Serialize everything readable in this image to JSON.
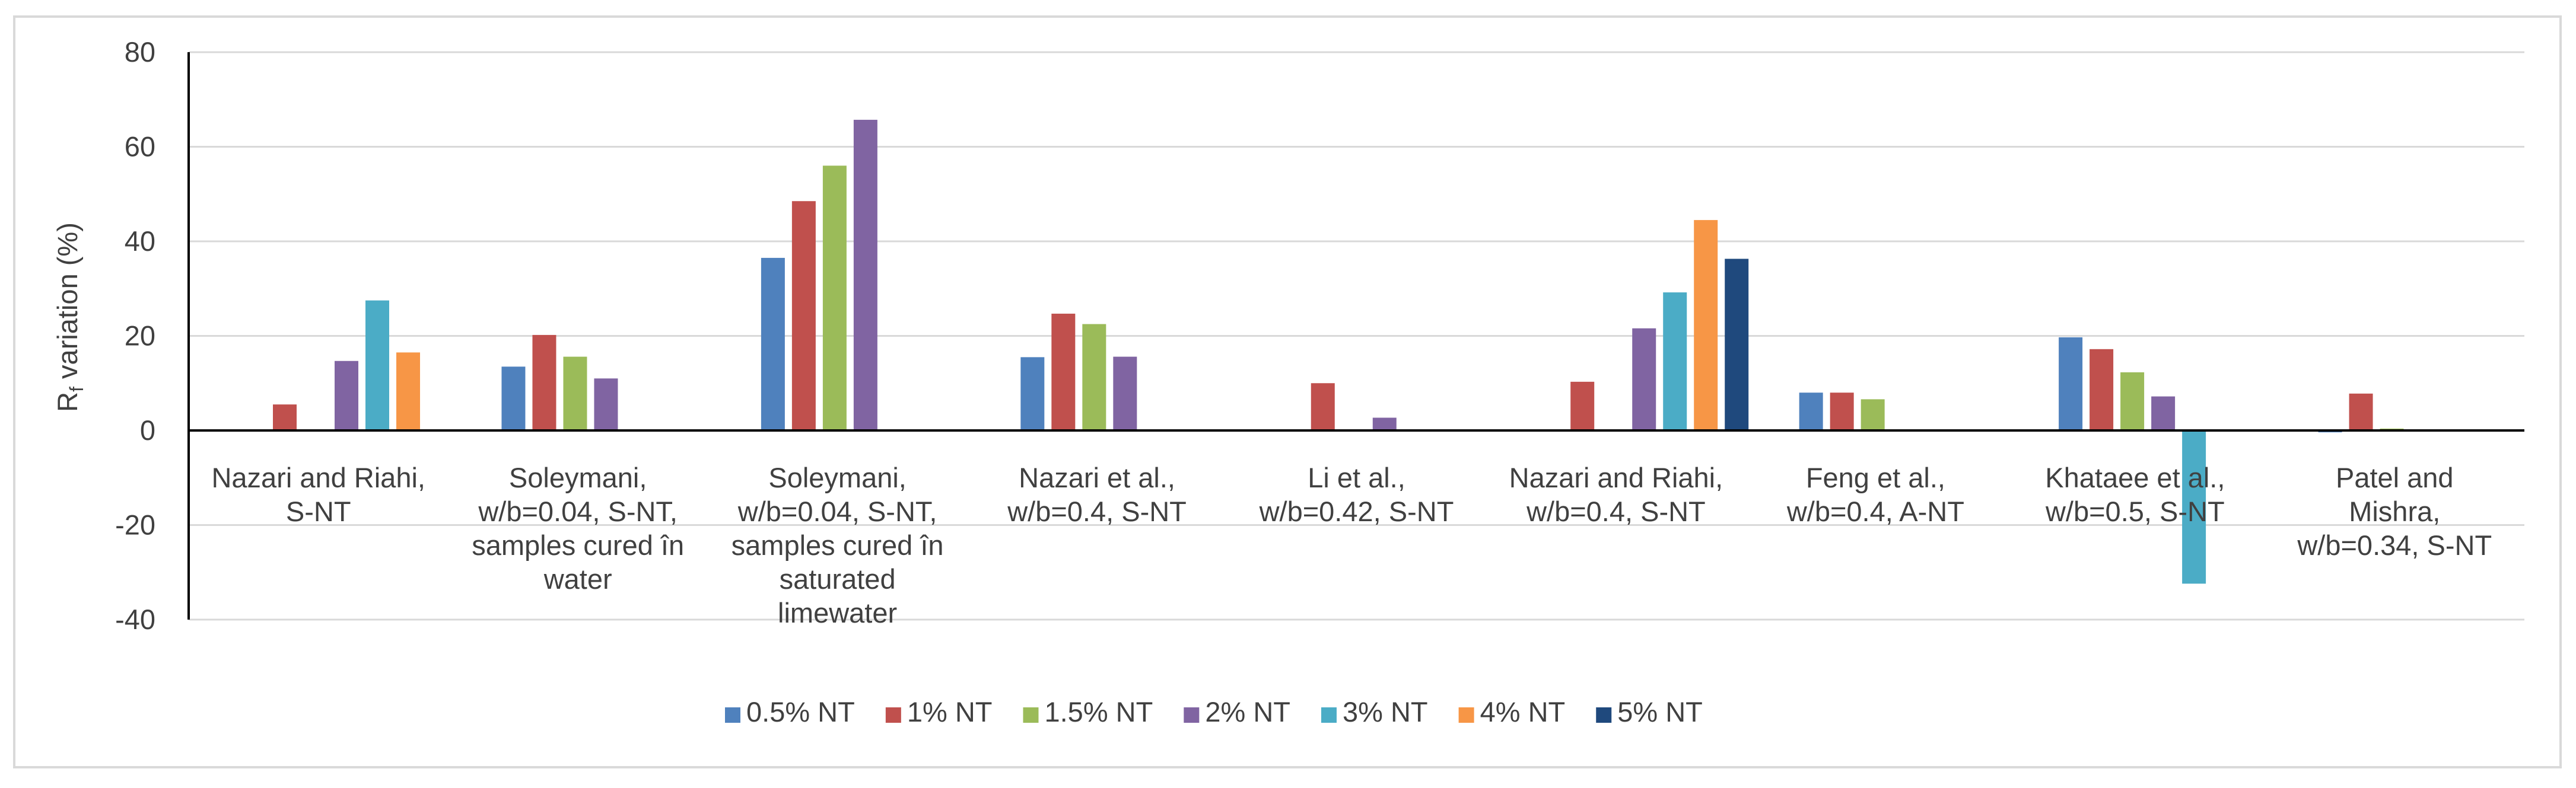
{
  "chart_data": {
    "type": "bar",
    "title": "",
    "xlabel": "",
    "ylabel": {
      "main": "R",
      "sub": "f",
      "rest": " variation (%)"
    },
    "ylim": [
      -40,
      80
    ],
    "yticks": [
      80,
      60,
      40,
      20,
      0,
      -20,
      -40
    ],
    "grid": true,
    "legend_position": "bottom",
    "categories": [
      [
        "Nazari and Riahi,",
        "S-NT"
      ],
      [
        "Soleymani,",
        "w/b=0.04, S-NT,",
        "samples cured în",
        "water"
      ],
      [
        "Soleymani,",
        "w/b=0.04, S-NT,",
        "samples cured în",
        "saturated",
        "limewater"
      ],
      [
        "Nazari et al.,",
        "w/b=0.4, S-NT"
      ],
      [
        "Li et al.,",
        "w/b=0.42, S-NT"
      ],
      [
        "Nazari and Riahi,",
        "w/b=0.4, S-NT"
      ],
      [
        "Feng et al.,",
        "w/b=0.4, A-NT"
      ],
      [
        "Khataee et al.,",
        "w/b=0.5, S-NT"
      ],
      [
        "Patel and",
        "Mishra,",
        "w/b=0.34, S-NT"
      ]
    ],
    "series": [
      {
        "name": "0.5% NT",
        "color": "#4f81bd",
        "values": [
          null,
          13.5,
          36.5,
          15.5,
          null,
          null,
          8,
          19.7,
          -0.4
        ]
      },
      {
        "name": "1% NT",
        "color": "#c0504d",
        "values": [
          5.5,
          20.2,
          48.5,
          24.7,
          10,
          10.3,
          8,
          17.2,
          7.8
        ]
      },
      {
        "name": "1.5% NT",
        "color": "#9bbb59",
        "values": [
          null,
          15.6,
          56,
          22.5,
          null,
          null,
          6.6,
          12.3,
          0.4
        ]
      },
      {
        "name": "2% NT",
        "color": "#8064a2",
        "values": [
          14.7,
          11,
          65.7,
          15.6,
          2.7,
          21.6,
          null,
          7.2,
          null
        ]
      },
      {
        "name": "3% NT",
        "color": "#4bacc6",
        "values": [
          27.5,
          null,
          null,
          null,
          null,
          29.2,
          null,
          -32.4,
          null
        ]
      },
      {
        "name": "4% NT",
        "color": "#f79646",
        "values": [
          16.5,
          null,
          null,
          null,
          null,
          44.5,
          null,
          null,
          null
        ]
      },
      {
        "name": "5% NT",
        "color": "#1f497d",
        "values": [
          null,
          null,
          null,
          null,
          null,
          36.3,
          null,
          null,
          null
        ]
      }
    ]
  }
}
